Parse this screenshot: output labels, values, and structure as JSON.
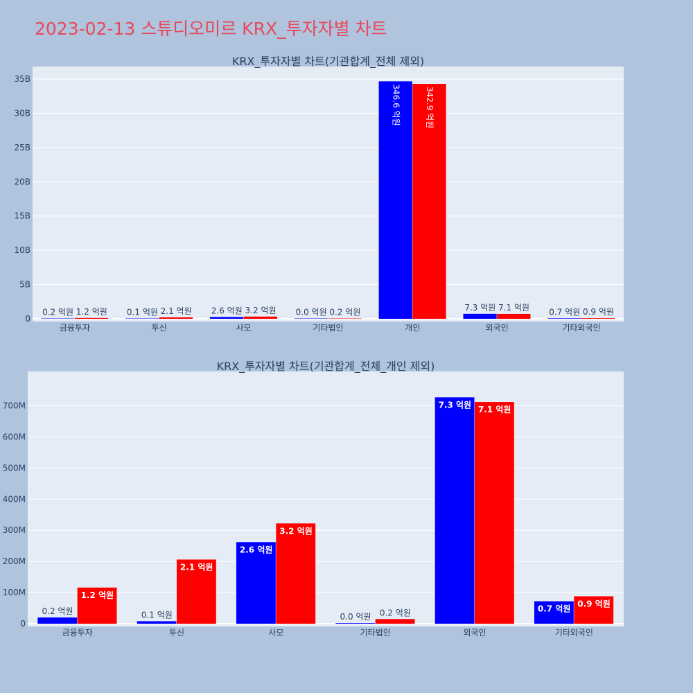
{
  "title": "2023-02-13 스튜디오미르 KRX_투자자별 차트",
  "colors": {
    "buy": "#0000ff",
    "sell": "#ff0000",
    "plot_bg": "#e5ecf6",
    "page_bg": "#b0c4de",
    "title": "#e8485a"
  },
  "chart_data": [
    {
      "type": "bar",
      "title": "KRX_투자자별 차트(기관합계_전체 제외)",
      "categories": [
        "금융투자",
        "투신",
        "사모",
        "기타법인",
        "개인",
        "외국인",
        "기타외국인"
      ],
      "ylim": [
        0,
        35000000000
      ],
      "yticks": [
        0,
        5000000000,
        10000000000,
        15000000000,
        20000000000,
        25000000000,
        30000000000,
        35000000000
      ],
      "ytick_labels": [
        "0",
        "5B",
        "10B",
        "15B",
        "20B",
        "25B",
        "30B",
        "35B"
      ],
      "grid": true,
      "series": [
        {
          "color": "#0000ff",
          "values": [
            20000000,
            8000000,
            262000000,
            2000000,
            34660000000,
            727000000,
            72000000
          ],
          "labels": [
            "0.2 억원",
            "0.1 억원",
            "2.6 억원",
            "0.0 억원",
            "346.6 억원",
            "7.3 억원",
            "0.7 억원"
          ]
        },
        {
          "color": "#ff0000",
          "values": [
            116000000,
            206000000,
            322000000,
            15000000,
            34290000000,
            712000000,
            88000000
          ],
          "labels": [
            "1.2 억원",
            "2.1 억원",
            "3.2 억원",
            "0.2 억원",
            "342.9 억원",
            "7.1 억원",
            "0.9 억원"
          ]
        }
      ]
    },
    {
      "type": "bar",
      "title": "KRX_투자자별 차트(기관합계_전체_개인 제외)",
      "categories": [
        "금융투자",
        "투신",
        "사모",
        "기타법인",
        "외국인",
        "기타외국인"
      ],
      "ylim": [
        0,
        770000000
      ],
      "yticks": [
        0,
        100000000,
        200000000,
        300000000,
        400000000,
        500000000,
        600000000,
        700000000
      ],
      "ytick_labels": [
        "0",
        "100M",
        "200M",
        "300M",
        "400M",
        "500M",
        "600M",
        "700M"
      ],
      "grid": true,
      "series": [
        {
          "color": "#0000ff",
          "values": [
            20000000,
            8000000,
            262000000,
            2000000,
            727000000,
            72000000
          ],
          "labels": [
            "0.2 억원",
            "0.1 억원",
            "2.6 억원",
            "0.0 억원",
            "7.3 억원",
            "0.7 억원"
          ]
        },
        {
          "color": "#ff0000",
          "values": [
            116000000,
            206000000,
            322000000,
            15000000,
            712000000,
            88000000
          ],
          "labels": [
            "1.2 억원",
            "2.1 억원",
            "3.2 억원",
            "0.2 억원",
            "7.1 억원",
            "0.9 억원"
          ]
        }
      ]
    }
  ]
}
